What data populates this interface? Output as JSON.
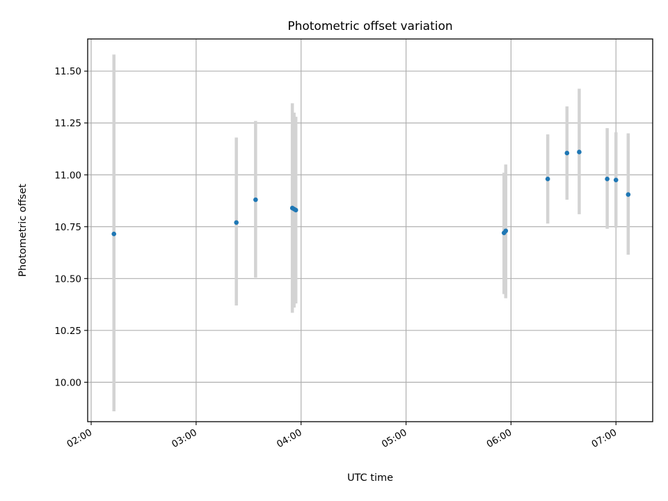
{
  "chart_data": {
    "type": "scatter",
    "title": "Photometric offset variation",
    "xlabel": "UTC time",
    "ylabel": "Photometric offset",
    "x_axis_kind": "time",
    "xlim": [
      "01:58",
      "07:21"
    ],
    "ylim": [
      9.81,
      11.655
    ],
    "x_ticks": [
      "02:00",
      "03:00",
      "04:00",
      "05:00",
      "06:00",
      "07:00"
    ],
    "y_ticks": [
      "10.00",
      "10.25",
      "10.50",
      "10.75",
      "11.00",
      "11.25",
      "11.50"
    ],
    "grid": true,
    "marker_color": "#1f77b4",
    "errorbar_color": "#d3d3d3",
    "series": [
      {
        "points": [
          {
            "x": "02:13",
            "y": 10.715,
            "yerr_low": 9.86,
            "yerr_high": 11.58
          },
          {
            "x": "03:23",
            "y": 10.77,
            "yerr_low": 10.37,
            "yerr_high": 11.18
          },
          {
            "x": "03:34",
            "y": 10.88,
            "yerr_low": 10.505,
            "yerr_high": 11.26
          },
          {
            "x": "03:55",
            "y": 10.84,
            "yerr_low": 10.335,
            "yerr_high": 11.345
          },
          {
            "x": "03:56",
            "y": 10.835,
            "yerr_low": 10.36,
            "yerr_high": 11.3
          },
          {
            "x": "03:57",
            "y": 10.83,
            "yerr_low": 10.38,
            "yerr_high": 11.28
          },
          {
            "x": "05:56",
            "y": 10.72,
            "yerr_low": 10.425,
            "yerr_high": 11.01
          },
          {
            "x": "05:57",
            "y": 10.73,
            "yerr_low": 10.405,
            "yerr_high": 11.05
          },
          {
            "x": "06:21",
            "y": 10.98,
            "yerr_low": 10.765,
            "yerr_high": 11.195
          },
          {
            "x": "06:32",
            "y": 11.105,
            "yerr_low": 10.88,
            "yerr_high": 11.33
          },
          {
            "x": "06:39",
            "y": 11.11,
            "yerr_low": 10.81,
            "yerr_high": 11.415
          },
          {
            "x": "06:55",
            "y": 10.98,
            "yerr_low": 10.74,
            "yerr_high": 11.225
          },
          {
            "x": "07:00",
            "y": 10.975,
            "yerr_low": 10.745,
            "yerr_high": 11.205
          },
          {
            "x": "07:07",
            "y": 10.905,
            "yerr_low": 10.615,
            "yerr_high": 11.2
          }
        ]
      }
    ]
  }
}
